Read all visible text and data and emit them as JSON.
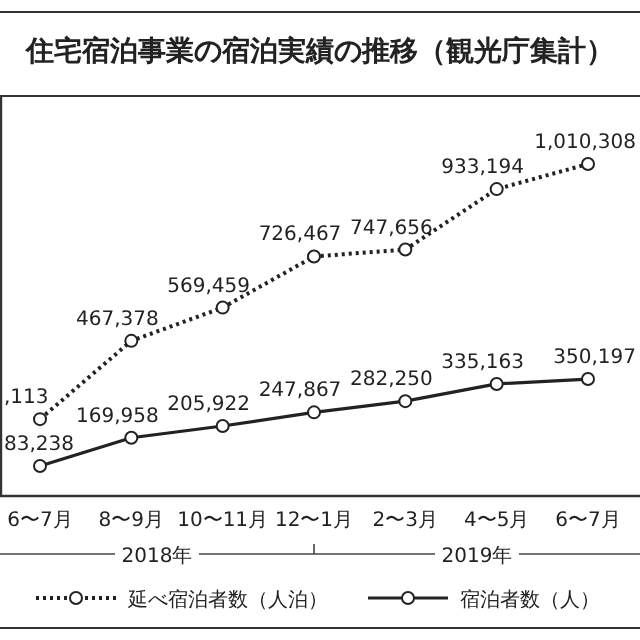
{
  "chart_data": {
    "type": "line",
    "title": "住宅宿泊事業の宿泊実績の推移（観光庁集計）",
    "categories": [
      "6〜7月",
      "8〜9月",
      "10〜11月",
      "12〜1月",
      "2〜3月",
      "4〜5月",
      "6〜7月"
    ],
    "series": [
      {
        "name": "延べ宿泊者数（人泊）",
        "color": "#222222",
        "line_style": "dotted",
        "values": [
          227113,
          467378,
          569459,
          726467,
          747656,
          933194,
          1010308
        ],
        "value_labels": [
          null,
          "467,378",
          "569,459",
          "726,467",
          "747,656",
          "933,194",
          "1,010,308"
        ]
      },
      {
        "name": "宿泊者数（人）",
        "color": "#222222",
        "line_style": "solid",
        "values": [
          83238,
          169958,
          205922,
          247867,
          282250,
          335163,
          350197
        ],
        "value_labels": [
          "83,238",
          "169,958",
          "205,922",
          "247,867",
          "282,250",
          "335,163",
          "350,197"
        ]
      }
    ],
    "annotations": [
      "2018年",
      "2019年",
      {
        "text": ",113",
        "x": "6〜7月",
        "y": 227113
      }
    ],
    "marker": "circle",
    "legend": "bottom"
  }
}
